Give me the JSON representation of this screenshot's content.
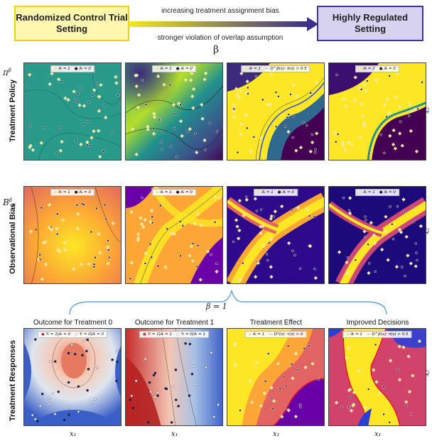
{
  "header": {
    "left_setting": "Randomized Control Trial Setting",
    "right_setting": "Highly Regulated Setting",
    "arrow_top_text": "increasing treatment assignment bias",
    "arrow_bottom_text": "stronger violation of overlap assumption",
    "arrow_symbol": "β",
    "colors": {
      "rct_fill": "#fff6b0",
      "rct_border": "#e8d21a",
      "reg_fill": "#d6d2f0",
      "reg_border": "#3d3590"
    }
  },
  "rows": [
    {
      "label": "Treatment Policy",
      "symbol": "π",
      "sup": "β"
    },
    {
      "label": "Observational Bias",
      "symbol": "B",
      "sup": "β",
      "sub": "X"
    },
    {
      "label": "Treatment Responses"
    }
  ],
  "side_axis_label": "x₂",
  "beta_annotation": "β = 1",
  "legends": {
    "a1": "Aᵢ = 1",
    "a0": "Aᵢ = 0",
    "boundary": "D^β(x): π(x) > 0.5",
    "y_t0_a": "Yᵢ = 1|Aᵢ = 0",
    "y_t0_b": "Yᵢ = 0|Aᵢ = 0",
    "y_t1_a": "Yᵢ = 1|Aᵢ = 1",
    "y_t1_b": "Yᵢ = 0|Aᵢ = 1",
    "te_line": "D*(x): τ(x) > 0",
    "dec_line1": "D^β(x): π(x) > 0.5",
    "dec_line2": "D*(x): τ(x) > 0"
  },
  "response_columns": [
    "Outcome for Treatment 0",
    "Outcome for Treatment 1",
    "Treatment Effect",
    "Improved Decisions"
  ],
  "bottom_axis_label": "x₁"
}
